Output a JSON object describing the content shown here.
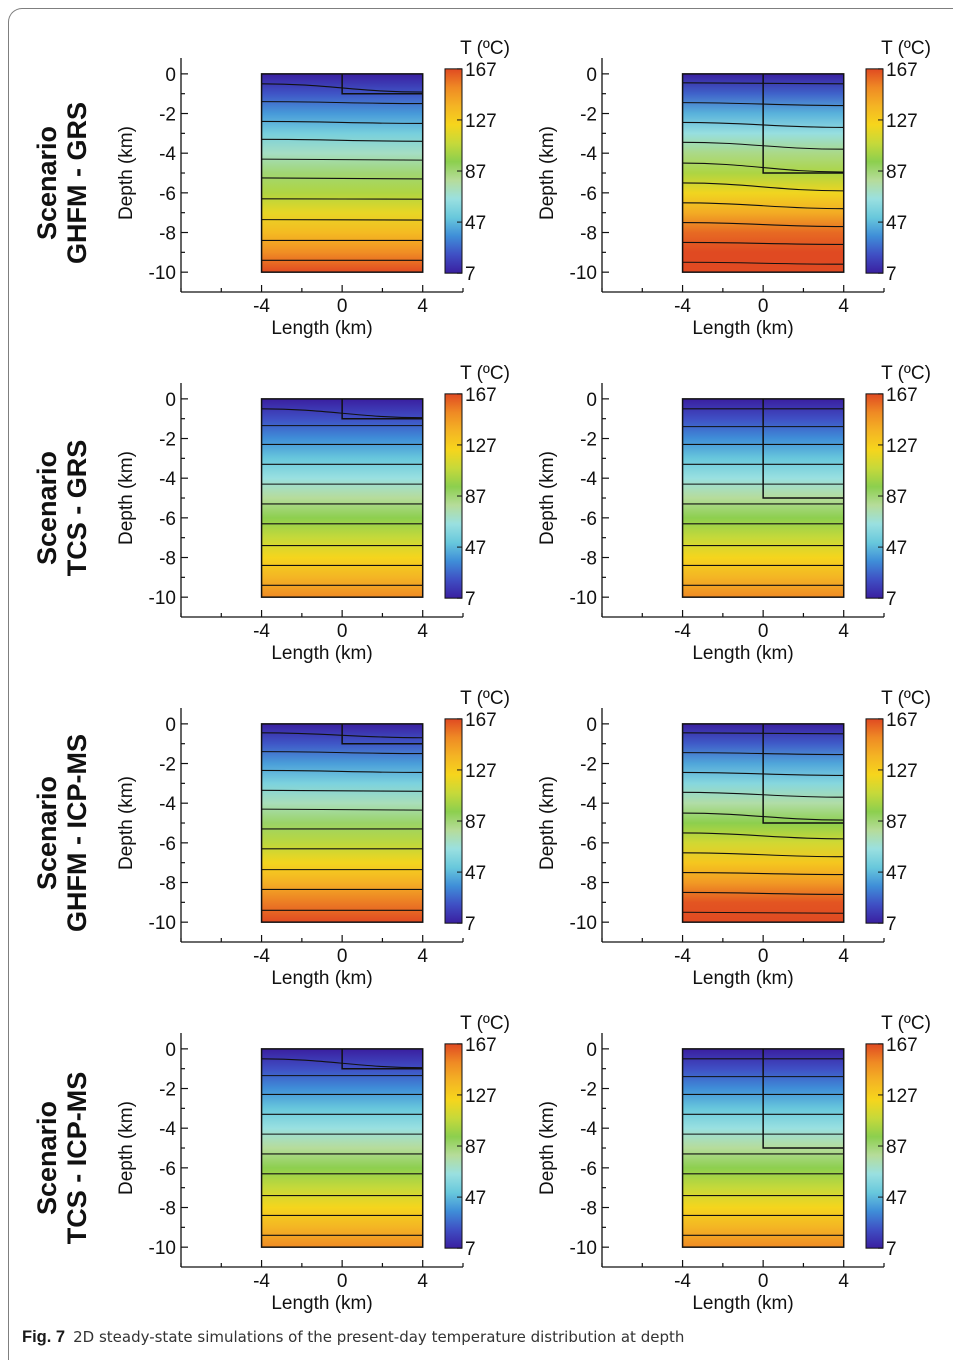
{
  "caption": {
    "label": "Fig. 7",
    "text": "2D steady-state simulations of the present-day temperature distribution at depth"
  },
  "colormap": [
    "#3a1fa0",
    "#3f4fc4",
    "#3f8ed8",
    "#68c8dc",
    "#9ae0e0",
    "#b6dc9a",
    "#8ccf4e",
    "#c6d93a",
    "#f6d51c",
    "#f4b424",
    "#ef8a24",
    "#e04a22"
  ],
  "chart_data": [
    {
      "type": "heatmap",
      "row_label": [
        "Scenario",
        "GHFM - GRS"
      ],
      "panel": "left",
      "xlabel": "Length (km)",
      "ylabel": "Depth (km)",
      "xticks": [
        "-4",
        "0",
        "4"
      ],
      "yticks": [
        "0",
        "-2",
        "-4",
        "-6",
        "-8",
        "-10"
      ],
      "xlim": [
        -8,
        6
      ],
      "ylim": [
        -11,
        0.8
      ],
      "colorbar": {
        "title": "T (ºC)",
        "ticks": [
          "167",
          "127",
          "87",
          "47",
          "7"
        ],
        "range": [
          7,
          167
        ]
      },
      "block": {
        "x_range": [
          -4,
          4
        ],
        "depth_range": [
          0,
          -10
        ],
        "t_top": 7,
        "t_bottom": 167
      },
      "inset": {
        "x": [
          0,
          4
        ],
        "depth": [
          0,
          -1
        ]
      },
      "contours": [
        {
          "left": -0.5,
          "right": -0.92
        },
        {
          "left": -1.4,
          "right": -1.5
        },
        {
          "left": -2.4,
          "right": -2.5
        },
        {
          "left": -3.3,
          "right": -3.4
        },
        {
          "left": -4.3,
          "right": -4.35
        },
        {
          "left": -5.25,
          "right": -5.3
        },
        {
          "left": -6.3,
          "right": -6.32
        },
        {
          "left": -7.35,
          "right": -7.37
        },
        {
          "left": -8.4,
          "right": -8.4
        },
        {
          "left": -9.4,
          "right": -9.4
        }
      ]
    },
    {
      "type": "heatmap",
      "row_label": [
        "Scenario",
        "GHFM - GRS"
      ],
      "panel": "right",
      "xlabel": "Length (km)",
      "ylabel": "Depth (km)",
      "xticks": [
        "-4",
        "0",
        "4"
      ],
      "yticks": [
        "0",
        "-2",
        "-4",
        "-6",
        "-8",
        "-10"
      ],
      "xlim": [
        -8,
        6
      ],
      "ylim": [
        -11,
        0.8
      ],
      "colorbar": {
        "title": "T (ºC)",
        "ticks": [
          "167",
          "127",
          "87",
          "47",
          "7"
        ],
        "range": [
          7,
          167
        ]
      },
      "block": {
        "x_range": [
          -4,
          4
        ],
        "depth_range": [
          0,
          -10
        ],
        "t_top": 7,
        "t_bottom": 198
      },
      "inset": {
        "x": [
          0,
          4
        ],
        "depth": [
          0,
          -5
        ]
      },
      "contours": [
        {
          "left": -0.45,
          "right": -0.5
        },
        {
          "left": -1.45,
          "right": -1.6
        },
        {
          "left": -2.45,
          "right": -2.7
        },
        {
          "left": -3.45,
          "right": -3.8
        },
        {
          "left": -4.5,
          "right": -4.95
        },
        {
          "left": -5.5,
          "right": -5.9
        },
        {
          "left": -6.5,
          "right": -6.8
        },
        {
          "left": -7.5,
          "right": -7.7
        },
        {
          "left": -8.5,
          "right": -8.6
        },
        {
          "left": -9.5,
          "right": -9.6
        }
      ]
    },
    {
      "type": "heatmap",
      "row_label": [
        "Scenario",
        "TCS - GRS"
      ],
      "panel": "left",
      "xlabel": "Length (km)",
      "ylabel": "Depth (km)",
      "xticks": [
        "-4",
        "0",
        "4"
      ],
      "yticks": [
        "0",
        "-2",
        "-4",
        "-6",
        "-8",
        "-10"
      ],
      "xlim": [
        -8,
        6
      ],
      "ylim": [
        -11,
        0.8
      ],
      "colorbar": {
        "title": "T (ºC)",
        "ticks": [
          "167",
          "127",
          "87",
          "47",
          "7"
        ],
        "range": [
          7,
          167
        ]
      },
      "block": {
        "x_range": [
          -4,
          4
        ],
        "depth_range": [
          0,
          -10
        ],
        "t_top": 7,
        "t_bottom": 152
      },
      "inset": {
        "x": [
          0,
          4
        ],
        "depth": [
          0,
          -1
        ]
      },
      "contours": [
        {
          "left": -0.5,
          "right": -0.95
        },
        {
          "left": -1.35,
          "right": -1.35
        },
        {
          "left": -2.3,
          "right": -2.3
        },
        {
          "left": -3.3,
          "right": -3.3
        },
        {
          "left": -4.3,
          "right": -4.3
        },
        {
          "left": -5.3,
          "right": -5.3
        },
        {
          "left": -6.3,
          "right": -6.3
        },
        {
          "left": -7.4,
          "right": -7.4
        },
        {
          "left": -8.4,
          "right": -8.4
        },
        {
          "left": -9.4,
          "right": -9.4
        }
      ]
    },
    {
      "type": "heatmap",
      "row_label": [
        "Scenario",
        "TCS - GRS"
      ],
      "panel": "right",
      "xlabel": "Length (km)",
      "ylabel": "Depth (km)",
      "xticks": [
        "-4",
        "0",
        "4"
      ],
      "yticks": [
        "0",
        "-2",
        "-4",
        "-6",
        "-8",
        "-10"
      ],
      "xlim": [
        -8,
        6
      ],
      "ylim": [
        -11,
        0.8
      ],
      "colorbar": {
        "title": "T (ºC)",
        "ticks": [
          "167",
          "127",
          "87",
          "47",
          "7"
        ],
        "range": [
          7,
          167
        ]
      },
      "block": {
        "x_range": [
          -4,
          4
        ],
        "depth_range": [
          0,
          -10
        ],
        "t_top": 7,
        "t_bottom": 152
      },
      "inset": {
        "x": [
          0,
          4
        ],
        "depth": [
          0,
          -5
        ]
      },
      "contours": [
        {
          "left": -0.5,
          "right": -0.5
        },
        {
          "left": -1.4,
          "right": -1.4
        },
        {
          "left": -2.3,
          "right": -2.3
        },
        {
          "left": -3.3,
          "right": -3.3
        },
        {
          "left": -4.3,
          "right": -4.3
        },
        {
          "left": -5.3,
          "right": -5.3
        },
        {
          "left": -6.3,
          "right": -6.3
        },
        {
          "left": -7.4,
          "right": -7.4
        },
        {
          "left": -8.4,
          "right": -8.4
        },
        {
          "left": -9.4,
          "right": -9.4
        }
      ]
    },
    {
      "type": "heatmap",
      "row_label": [
        "Scenario",
        "GHFM - ICP-MS"
      ],
      "panel": "left",
      "xlabel": "Length (km)",
      "ylabel": "Depth (km)",
      "xticks": [
        "-4",
        "0",
        "4"
      ],
      "yticks": [
        "0",
        "-2",
        "-4",
        "-6",
        "-8",
        "-10"
      ],
      "xlim": [
        -8,
        6
      ],
      "ylim": [
        -11,
        0.8
      ],
      "colorbar": {
        "title": "T (ºC)",
        "ticks": [
          "167",
          "127",
          "87",
          "47",
          "7"
        ],
        "range": [
          7,
          167
        ]
      },
      "block": {
        "x_range": [
          -4,
          4
        ],
        "depth_range": [
          0,
          -10
        ],
        "t_top": 7,
        "t_bottom": 172
      },
      "inset": {
        "x": [
          0,
          4
        ],
        "depth": [
          0,
          -1
        ]
      },
      "contours": [
        {
          "left": -0.45,
          "right": -0.7
        },
        {
          "left": -1.4,
          "right": -1.5
        },
        {
          "left": -2.35,
          "right": -2.45
        },
        {
          "left": -3.35,
          "right": -3.4
        },
        {
          "left": -4.3,
          "right": -4.35
        },
        {
          "left": -5.3,
          "right": -5.3
        },
        {
          "left": -6.3,
          "right": -6.3
        },
        {
          "left": -7.35,
          "right": -7.35
        },
        {
          "left": -8.35,
          "right": -8.35
        },
        {
          "left": -9.4,
          "right": -9.4
        }
      ]
    },
    {
      "type": "heatmap",
      "row_label": [
        "Scenario",
        "GHFM - ICP-MS"
      ],
      "panel": "right",
      "xlabel": "Length (km)",
      "ylabel": "Depth (km)",
      "xticks": [
        "-4",
        "0",
        "4"
      ],
      "yticks": [
        "0",
        "-2",
        "-4",
        "-6",
        "-8",
        "-10"
      ],
      "xlim": [
        -8,
        6
      ],
      "ylim": [
        -11,
        0.8
      ],
      "colorbar": {
        "title": "T (ºC)",
        "ticks": [
          "167",
          "127",
          "87",
          "47",
          "7"
        ],
        "range": [
          7,
          167
        ]
      },
      "block": {
        "x_range": [
          -4,
          4
        ],
        "depth_range": [
          0,
          -10
        ],
        "t_top": 7,
        "t_bottom": 182
      },
      "inset": {
        "x": [
          0,
          4
        ],
        "depth": [
          0,
          -5
        ]
      },
      "contours": [
        {
          "left": -0.45,
          "right": -0.5
        },
        {
          "left": -1.45,
          "right": -1.55
        },
        {
          "left": -2.45,
          "right": -2.6
        },
        {
          "left": -3.45,
          "right": -3.7
        },
        {
          "left": -4.5,
          "right": -4.85
        },
        {
          "left": -5.5,
          "right": -5.8
        },
        {
          "left": -6.5,
          "right": -6.7
        },
        {
          "left": -7.5,
          "right": -7.6
        },
        {
          "left": -8.5,
          "right": -8.6
        },
        {
          "left": -9.5,
          "right": -9.55
        }
      ]
    },
    {
      "type": "heatmap",
      "row_label": [
        "Scenario",
        "TCS - ICP-MS"
      ],
      "panel": "left",
      "xlabel": "Length (km)",
      "ylabel": "Depth (km)",
      "xticks": [
        "-4",
        "0",
        "4"
      ],
      "yticks": [
        "0",
        "-2",
        "-4",
        "-6",
        "-8",
        "-10"
      ],
      "xlim": [
        -8,
        6
      ],
      "ylim": [
        -11,
        0.8
      ],
      "colorbar": {
        "title": "T (ºC)",
        "ticks": [
          "167",
          "127",
          "87",
          "47",
          "7"
        ],
        "range": [
          7,
          167
        ]
      },
      "block": {
        "x_range": [
          -4,
          4
        ],
        "depth_range": [
          0,
          -10
        ],
        "t_top": 7,
        "t_bottom": 152
      },
      "inset": {
        "x": [
          0,
          4
        ],
        "depth": [
          0,
          -1
        ]
      },
      "contours": [
        {
          "left": -0.5,
          "right": -0.95
        },
        {
          "left": -1.35,
          "right": -1.35
        },
        {
          "left": -2.3,
          "right": -2.3
        },
        {
          "left": -3.3,
          "right": -3.3
        },
        {
          "left": -4.3,
          "right": -4.3
        },
        {
          "left": -5.3,
          "right": -5.3
        },
        {
          "left": -6.3,
          "right": -6.3
        },
        {
          "left": -7.4,
          "right": -7.4
        },
        {
          "left": -8.4,
          "right": -8.4
        },
        {
          "left": -9.4,
          "right": -9.4
        }
      ]
    },
    {
      "type": "heatmap",
      "row_label": [
        "Scenario",
        "TCS - ICP-MS"
      ],
      "panel": "right",
      "xlabel": "Length (km)",
      "ylabel": "Depth (km)",
      "xticks": [
        "-4",
        "0",
        "4"
      ],
      "yticks": [
        "0",
        "-2",
        "-4",
        "-6",
        "-8",
        "-10"
      ],
      "xlim": [
        -8,
        6
      ],
      "ylim": [
        -11,
        0.8
      ],
      "colorbar": {
        "title": "T (ºC)",
        "ticks": [
          "167",
          "127",
          "87",
          "47",
          "7"
        ],
        "range": [
          7,
          167
        ]
      },
      "block": {
        "x_range": [
          -4,
          4
        ],
        "depth_range": [
          0,
          -10
        ],
        "t_top": 7,
        "t_bottom": 152
      },
      "inset": {
        "x": [
          0,
          4
        ],
        "depth": [
          0,
          -5
        ]
      },
      "contours": [
        {
          "left": -0.5,
          "right": -0.5
        },
        {
          "left": -1.4,
          "right": -1.4
        },
        {
          "left": -2.3,
          "right": -2.3
        },
        {
          "left": -3.3,
          "right": -3.3
        },
        {
          "left": -4.3,
          "right": -4.3
        },
        {
          "left": -5.3,
          "right": -5.3
        },
        {
          "left": -6.3,
          "right": -6.3
        },
        {
          "left": -7.4,
          "right": -7.4
        },
        {
          "left": -8.4,
          "right": -8.4
        },
        {
          "left": -9.4,
          "right": -9.4
        }
      ]
    }
  ]
}
